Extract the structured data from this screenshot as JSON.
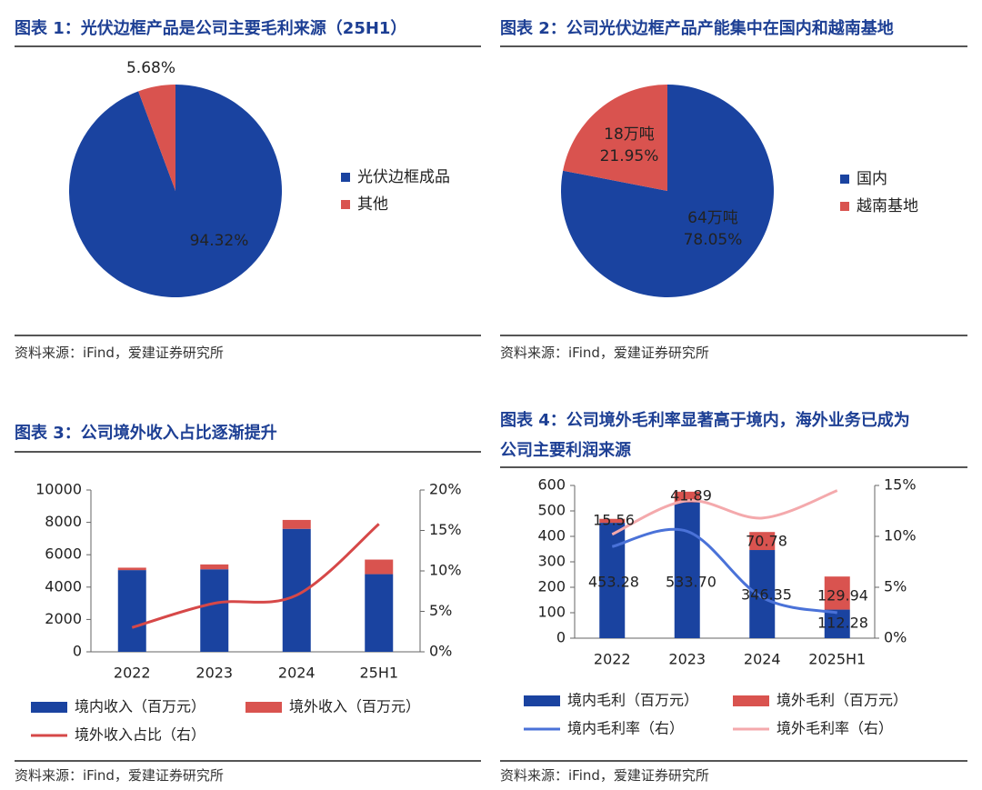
{
  "panels": {
    "fig1": {
      "title": "图表 1：光伏边框产品是公司主要毛利来源（25H1）",
      "source": "资料来源：iFind，爱建证券研究所"
    },
    "fig2": {
      "title": "图表 2：公司光伏边框产品产能集中在国内和越南基地",
      "source": "资料来源：iFind，爱建证券研究所"
    },
    "fig3": {
      "title": "图表 3：公司境外收入占比逐渐提升",
      "source": "资料来源：iFind，爱建证券研究所"
    },
    "fig4": {
      "title_line1": "图表 4：公司境外毛利率显著高于境内，海外业务已成为",
      "title_line2": "公司主要利润来源",
      "source": "资料来源：iFind，爱建证券研究所"
    }
  },
  "colors": {
    "blue": "#1a43a0",
    "red": "#d9534f",
    "line_red": "#d64848",
    "line_blue": "#4a72d8",
    "line_pink": "#f4a9ac"
  },
  "chart_data": [
    {
      "id": "fig1",
      "type": "pie",
      "labels": [
        "光伏边框成品",
        "其他"
      ],
      "values": [
        94.32,
        5.68
      ],
      "data_labels": [
        "94.32%",
        "5.68%"
      ],
      "legend": "right"
    },
    {
      "id": "fig2",
      "type": "pie",
      "labels": [
        "国内",
        "越南基地"
      ],
      "values": [
        78.05,
        21.95
      ],
      "data_labels": [
        [
          "64万吨",
          "78.05%"
        ],
        [
          "18万吨",
          "21.95%"
        ]
      ],
      "legend": "right"
    },
    {
      "id": "fig3",
      "type": "bar",
      "categories": [
        "2022",
        "2023",
        "2024",
        "25H1"
      ],
      "series": [
        {
          "name": "境内收入（百万元）",
          "kind": "stacked-bar",
          "axis": "left",
          "values": [
            5050,
            5100,
            7600,
            4800
          ]
        },
        {
          "name": "境外收入（百万元）",
          "kind": "stacked-bar",
          "axis": "left",
          "values": [
            150,
            300,
            550,
            900
          ]
        },
        {
          "name": "境外收入占比（右）",
          "kind": "line",
          "axis": "right",
          "values": [
            3.0,
            6.0,
            7.0,
            15.8
          ]
        }
      ],
      "ylim": [
        0,
        10000
      ],
      "yticks": [
        "0",
        "2000",
        "4000",
        "6000",
        "8000",
        "10000"
      ],
      "y2lim": [
        0,
        20
      ],
      "y2ticks": [
        "0%",
        "5%",
        "10%",
        "15%",
        "20%"
      ],
      "legend": "bottom"
    },
    {
      "id": "fig4",
      "type": "bar",
      "categories": [
        "2022",
        "2023",
        "2024",
        "2025H1"
      ],
      "series": [
        {
          "name": "境内毛利（百万元）",
          "kind": "stacked-bar",
          "axis": "left",
          "values": [
            453.28,
            533.7,
            346.35,
            112.28
          ],
          "labels": [
            "453.28",
            "533.70",
            "346.35",
            "112.28"
          ]
        },
        {
          "name": "境外毛利（百万元）",
          "kind": "stacked-bar",
          "axis": "left",
          "values": [
            15.56,
            41.89,
            70.78,
            129.94
          ],
          "labels": [
            "15.56",
            "41.89",
            "70.78",
            "129.94"
          ]
        },
        {
          "name": "境内毛利率（右）",
          "kind": "line",
          "axis": "right",
          "values": [
            9.0,
            10.5,
            4.0,
            2.5
          ]
        },
        {
          "name": "境外毛利率（右）",
          "kind": "line",
          "axis": "right",
          "values": [
            10.2,
            13.5,
            11.8,
            14.5
          ]
        }
      ],
      "ylim": [
        0,
        600
      ],
      "yticks": [
        "0",
        "100",
        "200",
        "300",
        "400",
        "500",
        "600"
      ],
      "y2lim": [
        0,
        15
      ],
      "y2ticks": [
        "0%",
        "5%",
        "10%",
        "15%"
      ],
      "legend": "bottom"
    }
  ]
}
